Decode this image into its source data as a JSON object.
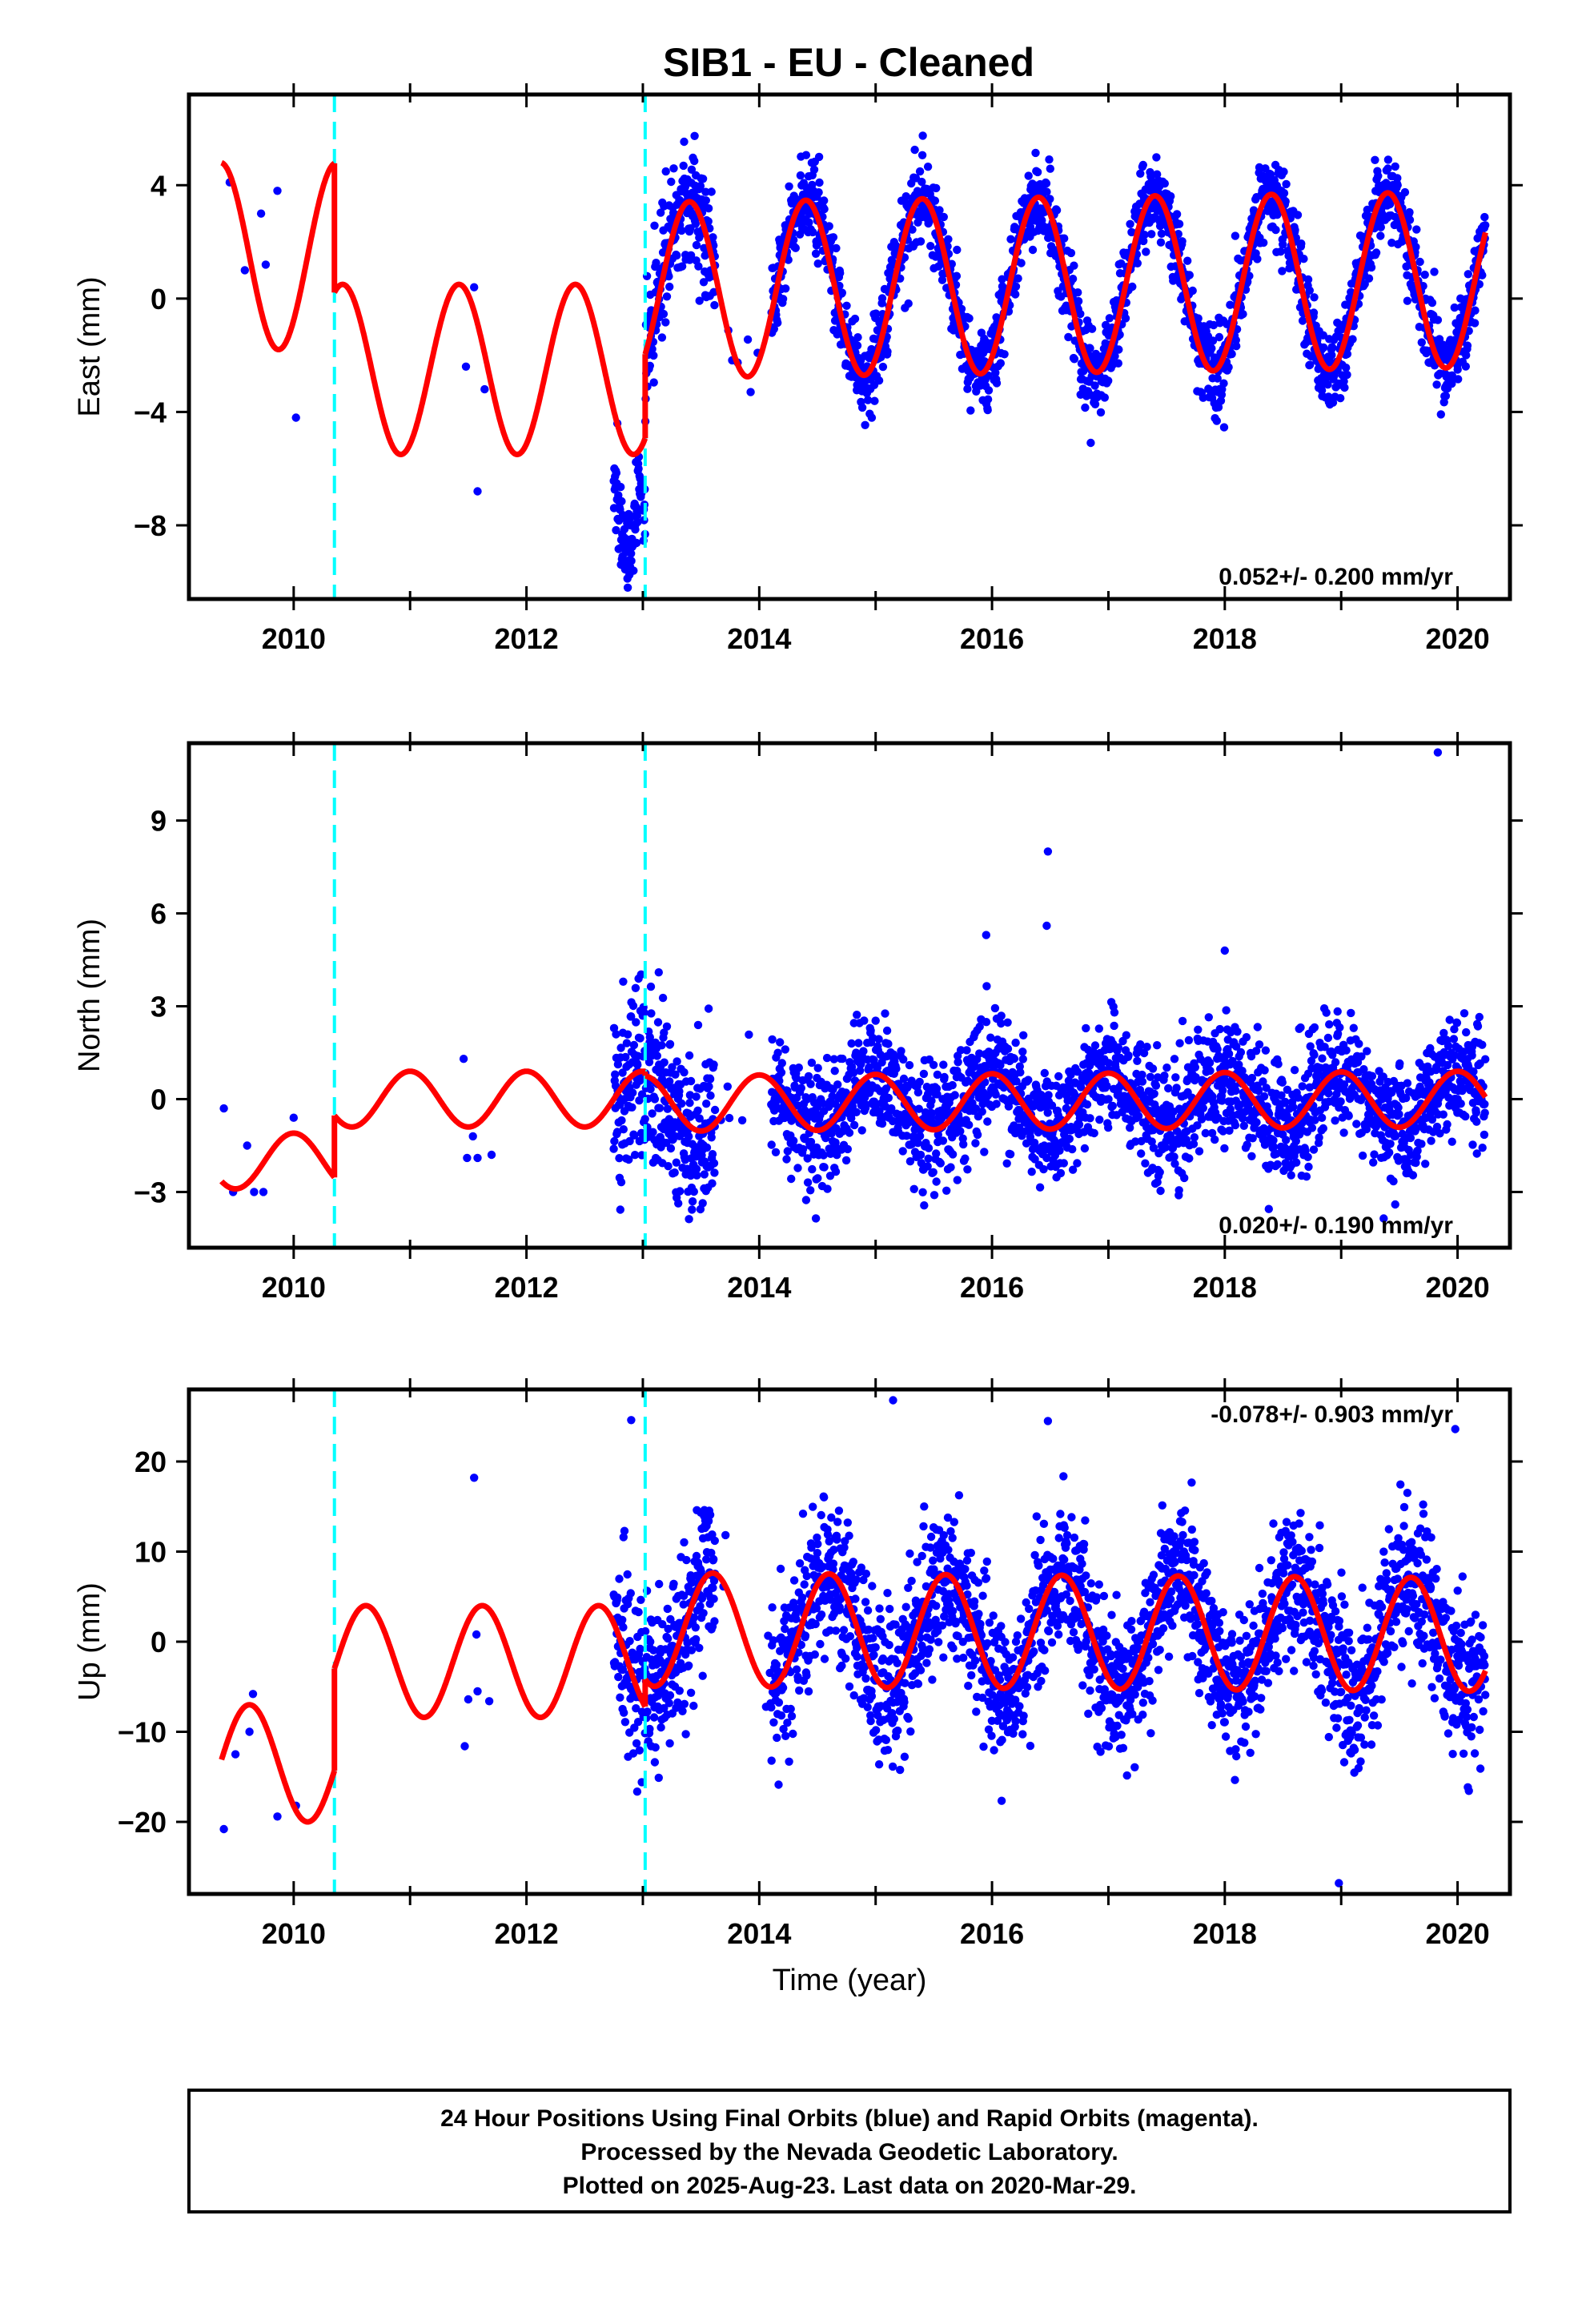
{
  "title": "SIB1  - EU - Cleaned",
  "caption": [
    "24 Hour Positions Using Final Orbits (blue) and Rapid Orbits (magenta).",
    "Processed by the Nevada Geodetic Laboratory.",
    "Plotted on 2025-Aug-23. Last data on 2020-Mar-29."
  ],
  "colors": {
    "points": "#0000ff",
    "model": "#ff0000",
    "offsets": "#00ffff",
    "frame": "#000000"
  },
  "chart_data": [
    {
      "type": "scatter",
      "ylabel": "East (mm)",
      "xlabel": "",
      "rate": "0.052+/- 0.200 mm/yr",
      "xlim": [
        2009.1,
        2020.45
      ],
      "ylim": [
        -10.6,
        7.2
      ],
      "xticks": [
        2010,
        2012,
        2014,
        2016,
        2018,
        2020
      ],
      "yticks": [
        -8,
        -4,
        0,
        4
      ],
      "offsets": [
        2010.35,
        2013.02
      ],
      "model": {
        "segments": [
          {
            "start": 2009.38,
            "end": 2010.35,
            "base": 1.5,
            "slope": 0.0,
            "amp": 3.3,
            "peak": 0.37
          },
          {
            "start": 2010.35,
            "end": 2013.02,
            "base": -2.5,
            "slope": 0.0,
            "amp": 3.0,
            "peak": 0.42
          },
          {
            "start": 2013.02,
            "end": 2020.24,
            "base": 0.4,
            "slope": 0.052,
            "amp": 3.1,
            "peak": 0.4
          }
        ]
      },
      "outliers": [
        [
          2009.45,
          4.1
        ],
        [
          2009.58,
          1.0
        ],
        [
          2009.72,
          3.0
        ],
        [
          2009.76,
          1.2
        ],
        [
          2009.86,
          3.8
        ],
        [
          2010.02,
          -4.2
        ],
        [
          2011.48,
          -2.4
        ],
        [
          2011.55,
          0.4
        ],
        [
          2011.58,
          -6.8
        ],
        [
          2011.64,
          -3.2
        ],
        [
          2012.82,
          -8.8
        ],
        [
          2012.87,
          -10.2
        ],
        [
          2012.92,
          -9.6
        ]
      ],
      "density_scale": 1.0
    },
    {
      "type": "scatter",
      "ylabel": "North (mm)",
      "xlabel": "",
      "rate": "0.020+/- 0.190 mm/yr",
      "xlim": [
        2009.1,
        2020.45
      ],
      "ylim": [
        -4.8,
        11.5
      ],
      "xticks": [
        2010,
        2012,
        2014,
        2016,
        2018,
        2020
      ],
      "yticks": [
        -3,
        0,
        3,
        6,
        9
      ],
      "offsets": [
        2010.35,
        2013.02
      ],
      "model": {
        "segments": [
          {
            "start": 2009.38,
            "end": 2010.35,
            "base": -2.0,
            "slope": 0.0,
            "amp": 0.9,
            "peak": 0.0
          },
          {
            "start": 2010.35,
            "end": 2013.02,
            "base": 0.0,
            "slope": 0.0,
            "amp": 0.9,
            "peak": 0.0
          },
          {
            "start": 2013.02,
            "end": 2020.24,
            "base": -0.1,
            "slope": 0.02,
            "amp": 0.9,
            "peak": 0.0
          }
        ]
      },
      "outliers": [
        [
          2009.4,
          -0.3
        ],
        [
          2009.48,
          -3.0
        ],
        [
          2009.6,
          -1.5
        ],
        [
          2009.66,
          -3.0
        ],
        [
          2009.74,
          -3.0
        ],
        [
          2010.0,
          -0.6
        ],
        [
          2011.46,
          1.3
        ],
        [
          2011.49,
          -1.9
        ],
        [
          2011.54,
          -1.2
        ],
        [
          2011.58,
          -1.9
        ],
        [
          2011.7,
          -1.8
        ],
        [
          2016.48,
          8.0
        ],
        [
          2016.47,
          5.6
        ],
        [
          2015.95,
          5.3
        ],
        [
          2019.83,
          11.2
        ],
        [
          2018.0,
          4.8
        ]
      ],
      "density_scale": 1.0
    },
    {
      "type": "scatter",
      "ylabel": "Up (mm)",
      "xlabel": "Time (year)",
      "rate": "-0.078+/- 0.903 mm/yr",
      "xlim": [
        2009.1,
        2020.45
      ],
      "ylim": [
        -28.0,
        28.0
      ],
      "xticks": [
        2010,
        2012,
        2014,
        2016,
        2018,
        2020
      ],
      "yticks": [
        -20,
        -10,
        0,
        10,
        20
      ],
      "offsets": [
        2010.35,
        2013.02
      ],
      "model": {
        "segments": [
          {
            "start": 2009.38,
            "end": 2010.35,
            "base": -13.5,
            "slope": 0.0,
            "amp": 6.5,
            "peak": 0.62
          },
          {
            "start": 2010.35,
            "end": 2013.02,
            "base": -2.2,
            "slope": 0.0,
            "amp": 6.2,
            "peak": 0.62
          },
          {
            "start": 2013.02,
            "end": 2020.24,
            "base": 1.2,
            "slope": -0.078,
            "amp": 6.3,
            "peak": 0.6
          }
        ]
      },
      "outliers": [
        [
          2009.4,
          -20.8
        ],
        [
          2009.5,
          -12.5
        ],
        [
          2009.65,
          -5.8
        ],
        [
          2009.62,
          -10.0
        ],
        [
          2009.86,
          -19.4
        ],
        [
          2010.02,
          -18.2
        ],
        [
          2011.47,
          -11.6
        ],
        [
          2011.5,
          -6.4
        ],
        [
          2011.55,
          18.2
        ],
        [
          2011.57,
          0.8
        ],
        [
          2011.68,
          -6.6
        ],
        [
          2011.58,
          -5.5
        ],
        [
          2012.9,
          24.6
        ],
        [
          2015.15,
          26.8
        ],
        [
          2016.48,
          24.5
        ],
        [
          2018.98,
          -26.8
        ],
        [
          2019.98,
          23.6
        ]
      ],
      "density_scale": 4.0
    }
  ]
}
